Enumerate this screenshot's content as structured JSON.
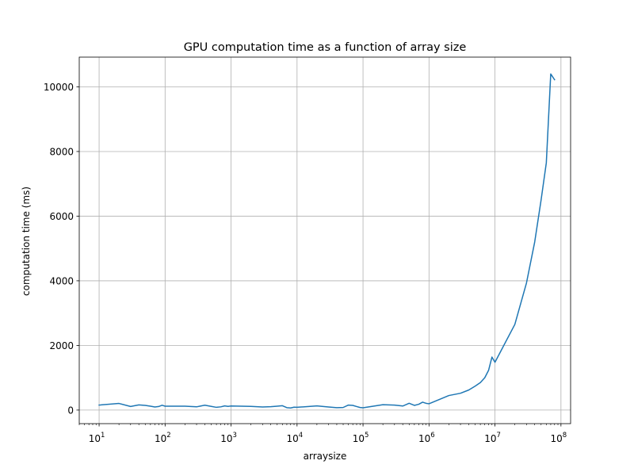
{
  "chart_data": {
    "type": "line",
    "title": "GPU computation time as a function of array size",
    "xlabel": "arraysize",
    "ylabel": "computation time (ms)",
    "xscale": "log",
    "xlim": [
      5.0,
      140000000
    ],
    "ylim": [
      -420,
      10920
    ],
    "grid": true,
    "x_ticks": [
      {
        "value": 10,
        "base": "10",
        "exp": "1"
      },
      {
        "value": 100,
        "base": "10",
        "exp": "2"
      },
      {
        "value": 1000,
        "base": "10",
        "exp": "3"
      },
      {
        "value": 10000,
        "base": "10",
        "exp": "4"
      },
      {
        "value": 100000,
        "base": "10",
        "exp": "5"
      },
      {
        "value": 1000000,
        "base": "10",
        "exp": "6"
      },
      {
        "value": 10000000,
        "base": "10",
        "exp": "7"
      },
      {
        "value": 100000000,
        "base": "10",
        "exp": "8"
      }
    ],
    "y_ticks": [
      {
        "value": 0,
        "label": "0"
      },
      {
        "value": 2000,
        "label": "2000"
      },
      {
        "value": 4000,
        "label": "4000"
      },
      {
        "value": 6000,
        "label": "6000"
      },
      {
        "value": 8000,
        "label": "8000"
      },
      {
        "value": 10000,
        "label": "10000"
      }
    ],
    "series": [
      {
        "color": "#1f77b4",
        "x": [
          10,
          20,
          30,
          40,
          50,
          60,
          70,
          80,
          90,
          100,
          200,
          300,
          400,
          500,
          600,
          700,
          800,
          900,
          1000,
          2000,
          3000,
          4000,
          5000,
          6000,
          7000,
          8000,
          9000,
          10000,
          20000,
          30000,
          40000,
          50000,
          60000,
          70000,
          80000,
          90000,
          100000,
          200000,
          300000,
          400000,
          500000,
          600000,
          700000,
          800000,
          900000,
          1000000,
          2000000,
          3000000,
          4000000,
          5000000,
          6000000,
          7000000,
          8000000,
          9000000,
          10000000,
          20000000,
          30000000,
          40000000,
          50000000,
          60000000,
          70000000,
          80000000
        ],
        "y": [
          155,
          205,
          110,
          160,
          145,
          120,
          95,
          110,
          150,
          120,
          120,
          100,
          150,
          115,
          85,
          100,
          130,
          115,
          125,
          115,
          95,
          105,
          120,
          135,
          75,
          65,
          90,
          85,
          130,
          95,
          75,
          80,
          155,
          145,
          110,
          80,
          70,
          165,
          155,
          125,
          210,
          145,
          180,
          245,
          210,
          195,
          450,
          520,
          620,
          740,
          850,
          1000,
          1230,
          1640,
          1480,
          2650,
          3930,
          5200,
          6500,
          7650,
          10400,
          10220
        ]
      }
    ]
  }
}
